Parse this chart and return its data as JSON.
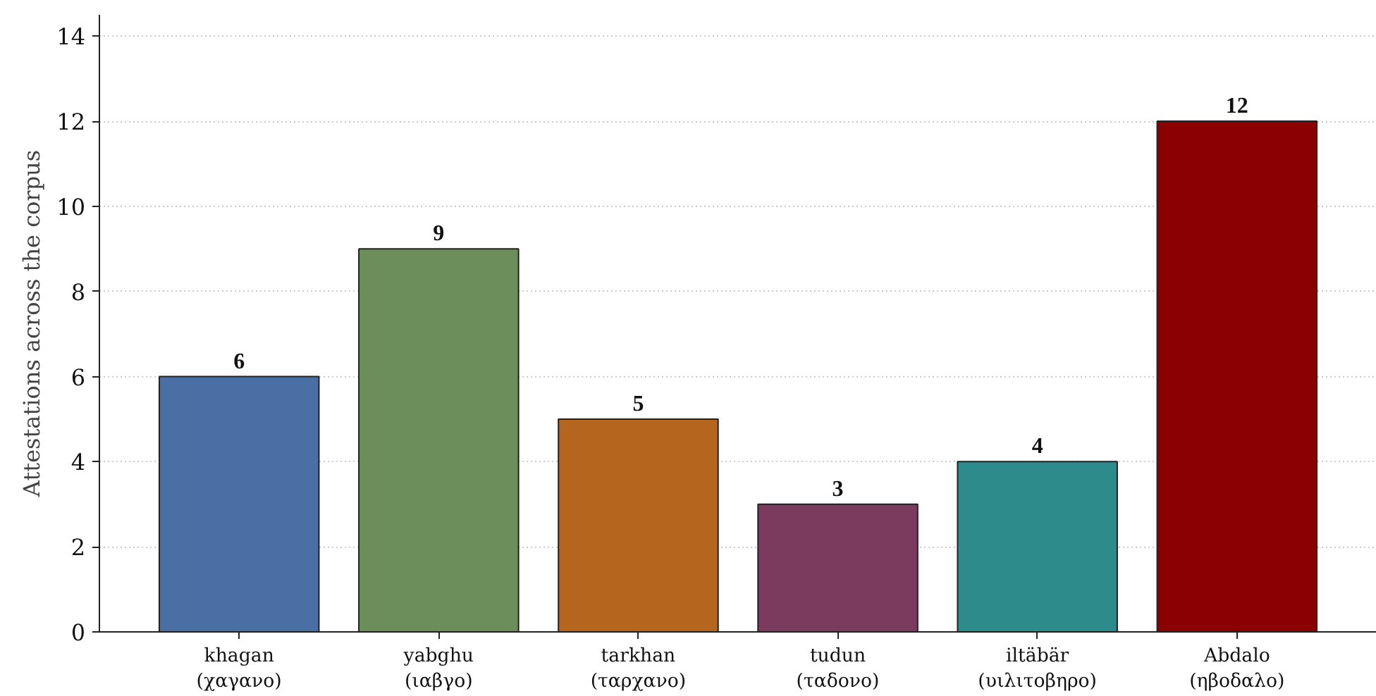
{
  "chart_data": {
    "type": "bar",
    "ylabel": "Attestations across the corpus",
    "categories": [
      "khagan\n(χαγανο)",
      "yabghu\n(ιαβγο)",
      "tarkhan\n(ταρχανο)",
      "tudun\n(ταδονο)",
      "iltäbär\n(υιλιτοβηρο)",
      "Abdalo\n(ηβοδαλο)"
    ],
    "values": [
      6,
      9,
      5,
      3,
      4,
      12
    ],
    "colors": [
      "#4a6fa5",
      "#6b8e5a",
      "#b5651d",
      "#7a3b5e",
      "#2e8b8b",
      "#8b0000"
    ],
    "ylim": [
      0,
      14.5
    ],
    "yticks": [
      0,
      2,
      4,
      6,
      8,
      10,
      12,
      14
    ],
    "grid": "y",
    "data_labels": true
  }
}
